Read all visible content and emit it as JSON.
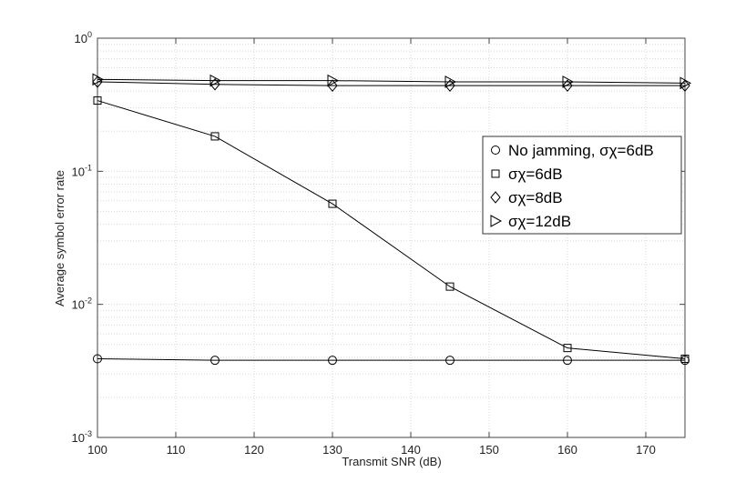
{
  "chart_data": {
    "type": "line",
    "xlabel": "Transmit SNR (dB)",
    "ylabel": "Average symbol error rate",
    "x": [
      100,
      115,
      130,
      145,
      160,
      175
    ],
    "xlim": [
      100,
      175
    ],
    "xticks": [
      100,
      110,
      120,
      130,
      140,
      150,
      160,
      170
    ],
    "ylim": [
      0.001,
      1
    ],
    "yticks": [
      {
        "value": 0.001,
        "label": "10^-3"
      },
      {
        "value": 0.01,
        "label": "10^-2"
      },
      {
        "value": 0.1,
        "label": "10^-1"
      },
      {
        "value": 1,
        "label": "10^0"
      }
    ],
    "yscale": "log",
    "grid": true,
    "minor_grid": true,
    "legend": "right",
    "series": [
      {
        "name": "No jamming, σχ=6dB",
        "color": "#000000",
        "marker": "circle",
        "values": [
          0.0039,
          0.0038,
          0.0038,
          0.0038,
          0.0038,
          0.0038
        ]
      },
      {
        "name": "σχ=6dB",
        "color": "#000000",
        "marker": "square",
        "values": [
          0.34,
          0.183,
          0.057,
          0.0136,
          0.0047,
          0.0039
        ]
      },
      {
        "name": "σχ=8dB",
        "color": "#000000",
        "marker": "diamond",
        "values": [
          0.47,
          0.45,
          0.44,
          0.44,
          0.44,
          0.44
        ]
      },
      {
        "name": "σχ=12dB",
        "color": "#000000",
        "marker": "triangle-right",
        "values": [
          0.49,
          0.48,
          0.48,
          0.47,
          0.47,
          0.46
        ]
      }
    ]
  }
}
